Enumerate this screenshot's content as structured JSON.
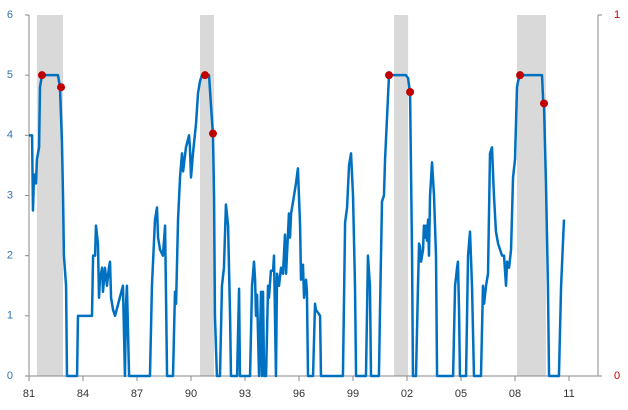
{
  "chart_data": {
    "type": "line",
    "xlim": [
      1981,
      2012.61
    ],
    "ylim": [
      0,
      6
    ],
    "y2lim": [
      0,
      1
    ],
    "yticks": [
      0,
      1,
      2,
      3,
      4,
      5,
      6
    ],
    "y2ticks": [
      0,
      1
    ],
    "xticks": [
      {
        "value": 1981,
        "label": "81"
      },
      {
        "value": 1984,
        "label": "84"
      },
      {
        "value": 1987,
        "label": "87"
      },
      {
        "value": 1990,
        "label": "90"
      },
      {
        "value": 1993,
        "label": "93"
      },
      {
        "value": 1996,
        "label": "96"
      },
      {
        "value": 1999,
        "label": "99"
      },
      {
        "value": 2002,
        "label": "02"
      },
      {
        "value": 2005,
        "label": "05"
      },
      {
        "value": 2008,
        "label": "08"
      },
      {
        "value": 2011,
        "label": "11"
      }
    ],
    "y_label_color": "#2e75b6",
    "y2_label_color": "#c00000",
    "color": "#0070c0",
    "shaded_periods": [
      [
        1981.44,
        1982.89
      ],
      [
        1990.5,
        1991.28
      ],
      [
        2001.28,
        2002.06
      ],
      [
        2008.11,
        2009.72
      ]
    ],
    "shade_color": "#d9d9d9",
    "x": [
      1981.0,
      1981.17,
      1981.22,
      1981.28,
      1981.39,
      1981.44,
      1981.56,
      1981.61,
      1981.72,
      1982.61,
      1982.72,
      1982.83,
      1982.89,
      1982.94,
      1983.06,
      1983.11,
      1983.67,
      1983.72,
      1984.5,
      1984.56,
      1984.67,
      1984.72,
      1984.83,
      1984.89,
      1984.94,
      1985.06,
      1985.11,
      1985.22,
      1985.33,
      1985.44,
      1985.5,
      1985.56,
      1985.67,
      1985.78,
      1986.22,
      1986.33,
      1986.39,
      1986.44,
      1986.56,
      1987.0,
      1987.72,
      1987.83,
      1988.0,
      1988.11,
      1988.17,
      1988.28,
      1988.44,
      1988.56,
      1988.67,
      1989.0,
      1989.11,
      1989.17,
      1989.28,
      1989.39,
      1989.5,
      1989.56,
      1989.72,
      1989.89,
      1989.94,
      1990.0,
      1990.11,
      1990.28,
      1990.39,
      1990.5,
      1990.61,
      1990.83,
      1991.0,
      1991.11,
      1991.22,
      1991.28,
      1991.33,
      1991.44,
      1991.61,
      1991.72,
      1991.83,
      1991.94,
      1992.06,
      1992.17,
      1992.22,
      1992.56,
      1992.67,
      1992.72,
      1993.28,
      1993.39,
      1993.5,
      1993.56,
      1993.61,
      1993.67,
      1993.78,
      1993.89,
      1993.94,
      1994.0,
      1994.06,
      1994.17,
      1994.28,
      1994.33,
      1994.44,
      1994.56,
      1994.61,
      1994.72,
      1994.78,
      1994.89,
      1995.0,
      1995.11,
      1995.22,
      1995.28,
      1995.33,
      1995.44,
      1995.5,
      1995.56,
      1995.67,
      1995.83,
      1995.94,
      1996.06,
      1996.11,
      1996.22,
      1996.28,
      1996.39,
      1996.44,
      1996.5,
      1996.78,
      1996.89,
      1996.94,
      1997.06,
      1997.17,
      1997.22,
      1998.44,
      1998.56,
      1998.67,
      1998.78,
      1998.89,
      1999.0,
      1999.11,
      1999.17,
      1999.72,
      1999.83,
      1999.94,
      2000.0,
      2000.44,
      2000.5,
      2000.61,
      2000.72,
      2000.78,
      2000.89,
      2001.0,
      2001.22,
      2001.61,
      2001.94,
      2002.06,
      2002.17,
      2002.28,
      2002.33,
      2002.5,
      2002.61,
      2002.67,
      2002.72,
      2002.78,
      2002.89,
      2002.94,
      2003.0,
      2003.06,
      2003.11,
      2003.17,
      2003.22,
      2003.28,
      2003.39,
      2003.5,
      2003.61,
      2003.67,
      2003.89,
      2004.56,
      2004.67,
      2004.78,
      2004.83,
      2004.89,
      2004.94,
      2005.28,
      2005.39,
      2005.5,
      2005.61,
      2005.72,
      2006.11,
      2006.22,
      2006.28,
      2006.39,
      2006.5,
      2006.61,
      2006.72,
      2006.83,
      2006.94,
      2007.06,
      2007.17,
      2007.28,
      2007.39,
      2007.5,
      2007.56,
      2007.67,
      2007.78,
      2007.89,
      2008.0,
      2008.11,
      2008.17,
      2008.28,
      2008.83,
      2009.5,
      2009.56,
      2009.61,
      2009.72,
      2009.83,
      2009.89,
      2010.44,
      2010.56,
      2010.72
    ],
    "values": [
      4.0,
      4.0,
      2.75,
      3.35,
      3.2,
      3.6,
      3.8,
      4.8,
      5.0,
      5.0,
      4.8,
      3.9,
      3.0,
      2.0,
      1.5,
      0,
      0,
      1.0,
      1.0,
      2.0,
      2.0,
      2.5,
      2.2,
      1.3,
      1.6,
      1.8,
      1.4,
      1.8,
      1.5,
      1.8,
      1.9,
      1.3,
      1.1,
      1.0,
      1.5,
      0,
      1.2,
      1.5,
      0,
      0,
      0,
      1.5,
      2.6,
      2.8,
      2.3,
      2.1,
      2.0,
      2.5,
      0,
      0,
      1.4,
      1.2,
      2.6,
      3.3,
      3.7,
      3.4,
      3.8,
      4.0,
      3.8,
      3.3,
      3.7,
      4.2,
      4.7,
      4.9,
      5.0,
      5.0,
      5.0,
      4.5,
      4.0,
      3.0,
      1.0,
      0,
      0,
      1.5,
      1.8,
      2.85,
      2.5,
      1.0,
      0,
      0,
      1.45,
      0,
      0,
      1.5,
      1.9,
      1.6,
      1.0,
      1.35,
      0,
      1.4,
      0,
      1.4,
      0,
      0,
      1.5,
      1.3,
      1.75,
      1.75,
      2.0,
      0,
      1.7,
      1.5,
      1.8,
      1.7,
      2.35,
      1.7,
      2.0,
      2.7,
      2.3,
      2.7,
      2.9,
      3.2,
      3.45,
      2.5,
      1.6,
      1.85,
      1.3,
      1.6,
      1.4,
      0,
      0,
      1.2,
      1.1,
      1.05,
      1.0,
      0,
      0,
      2.55,
      2.8,
      3.5,
      3.7,
      3.0,
      1.5,
      0,
      0,
      2.0,
      1.5,
      0,
      0,
      1.1,
      2.9,
      3.0,
      3.6,
      4.3,
      5.0,
      5.0,
      5.0,
      5.0,
      4.95,
      4.7,
      2.0,
      0,
      0,
      1.5,
      2.2,
      2.15,
      1.9,
      2.1,
      2.5,
      2.3,
      2.5,
      2.25,
      2.6,
      2.0,
      3.0,
      3.55,
      3.0,
      2.0,
      0,
      0,
      0,
      1.5,
      1.8,
      1.9,
      1.1,
      0,
      0,
      2.0,
      2.4,
      1.5,
      0,
      0,
      1.5,
      1.2,
      1.5,
      1.7,
      3.7,
      3.8,
      3.0,
      2.4,
      2.2,
      2.1,
      2.0,
      2.0,
      1.5,
      1.9,
      1.8,
      2.1,
      3.3,
      3.6,
      4.8,
      4.9,
      5.0,
      5.0,
      5.0,
      4.6,
      4.5,
      3.2,
      1.5,
      0,
      0,
      1.5,
      2.6
    ],
    "markers": {
      "color": "#c00000",
      "x": [
        1981.72,
        1982.78,
        1990.78,
        1991.22,
        2001.0,
        2002.17,
        2008.28,
        2009.61
      ],
      "values": [
        5.0,
        4.8,
        5.0,
        4.03,
        5.0,
        4.72,
        5.0,
        4.53
      ]
    }
  }
}
